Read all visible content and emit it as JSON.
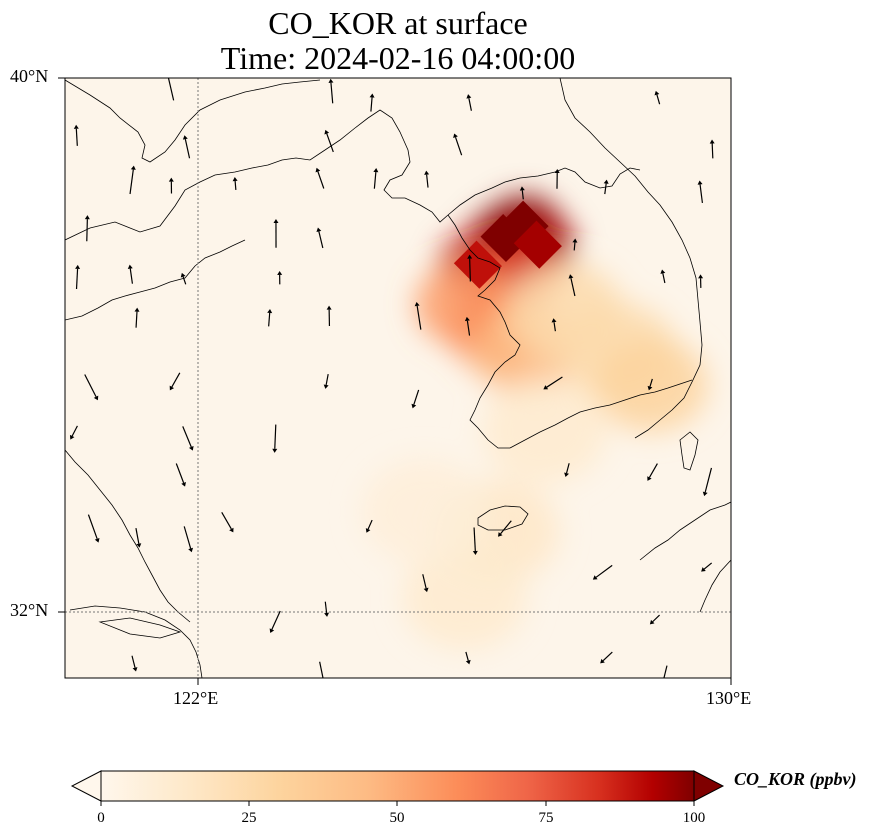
{
  "title": {
    "line1": "CO_KOR at surface",
    "line2": "Time: 2024-02-16 04:00:00"
  },
  "axes": {
    "lat_labels": [
      "40°N",
      "32°N"
    ],
    "lon_labels": [
      "122°E",
      "130°E"
    ],
    "lon_range": [
      120,
      130
    ],
    "lat_range": [
      31,
      40
    ],
    "gridlines": [
      {
        "lon": 122
      },
      {
        "lat": 32
      }
    ]
  },
  "colorbar": {
    "label": "CO_KOR (ppbv)",
    "ticks": [
      "0",
      "25",
      "50",
      "75",
      "100"
    ],
    "range": [
      0,
      100
    ],
    "colormap": "OrRd",
    "extend": "both"
  },
  "colors": {
    "background": "#fdf5ea",
    "low": "#fff7ec",
    "mid": "#fc8d59",
    "high": "#7f0000"
  },
  "chart_data": {
    "type": "heatmap",
    "variable": "CO_KOR",
    "units": "ppbv",
    "plume_cells": [
      {
        "lon": 126.6,
        "lat": 37.6,
        "value": 100
      },
      {
        "lon": 126.9,
        "lat": 37.8,
        "value": 100
      },
      {
        "lon": 127.1,
        "lat": 37.5,
        "value": 95
      },
      {
        "lon": 126.2,
        "lat": 37.2,
        "value": 90
      },
      {
        "lon": 126.8,
        "lat": 37.1,
        "value": 80
      },
      {
        "lon": 126.0,
        "lat": 36.6,
        "value": 55
      },
      {
        "lon": 126.5,
        "lat": 36.2,
        "value": 60
      },
      {
        "lon": 126.9,
        "lat": 35.9,
        "value": 45
      },
      {
        "lon": 127.5,
        "lat": 36.5,
        "value": 25
      },
      {
        "lon": 128.3,
        "lat": 35.9,
        "value": 25
      },
      {
        "lon": 128.8,
        "lat": 35.4,
        "value": 30
      },
      {
        "lon": 127.2,
        "lat": 34.7,
        "value": 12
      },
      {
        "lon": 126.5,
        "lat": 33.2,
        "value": 15
      },
      {
        "lon": 126.0,
        "lat": 32.2,
        "value": 12
      },
      {
        "lon": 125.4,
        "lat": 33.5,
        "value": 8
      }
    ]
  }
}
